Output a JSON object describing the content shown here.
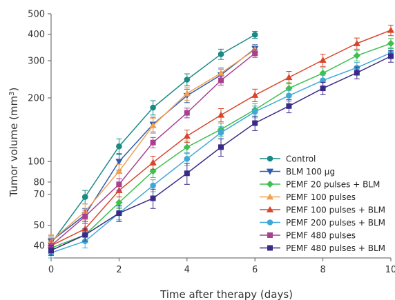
{
  "chart_data": {
    "type": "line",
    "xlabel": "Time after therapy (days)",
    "ylabel": "Tumor volume (mm3)",
    "ylabel_main": "Tumor volume (mm",
    "ylabel_sup": "3",
    "ylabel_end": ")",
    "xlim": [
      0,
      10
    ],
    "ylim": [
      35,
      500
    ],
    "yscale": "log",
    "xticks": [
      "0",
      "2",
      "4",
      "6",
      "8",
      "10"
    ],
    "xtick_values": [
      0,
      2,
      4,
      6,
      8,
      10
    ],
    "yticks": [
      "40",
      "50",
      "70",
      "80",
      "100",
      "200",
      "300",
      "400",
      "500"
    ],
    "ytick_values": [
      40,
      50,
      70,
      80,
      100,
      200,
      300,
      400,
      500
    ],
    "grid": false,
    "legend_position": "bottom-right",
    "series": [
      {
        "name": "Control",
        "color": "#1a8a84",
        "marker": "circle",
        "x": [
          0,
          1,
          2,
          3,
          4,
          5,
          6
        ],
        "y": [
          41,
          68,
          118,
          180,
          244,
          322,
          398
        ],
        "err": [
          2.5,
          5,
          10,
          14,
          16,
          18,
          15
        ]
      },
      {
        "name": "BLM 100 μg",
        "color": "#2e5bb0",
        "marker": "triangle-down",
        "x": [
          0,
          1,
          2,
          3,
          4,
          5,
          6
        ],
        "y": [
          42,
          56,
          100,
          150,
          205,
          257,
          342
        ],
        "err": [
          2.5,
          4,
          9,
          12,
          15,
          17,
          15
        ]
      },
      {
        "name": "PEMF 20 pulses + BLM",
        "color": "#3fbf4f",
        "marker": "diamond",
        "x": [
          0,
          1,
          2,
          3,
          4,
          5,
          6,
          7,
          8,
          9,
          10
        ],
        "y": [
          39,
          45,
          64,
          90,
          117,
          142,
          176,
          222,
          262,
          317,
          362
        ],
        "err": [
          2,
          3,
          4,
          6,
          8,
          10,
          12,
          14,
          16,
          18,
          20
        ]
      },
      {
        "name": "PEMF 100 pulses",
        "color": "#f0a050",
        "marker": "triangle-up",
        "x": [
          0,
          1,
          2,
          3,
          4,
          5,
          6
        ],
        "y": [
          42,
          58,
          90,
          148,
          210,
          262,
          338
        ],
        "err": [
          3,
          5,
          7,
          12,
          15,
          17,
          17
        ]
      },
      {
        "name": "PEMF 100 pulses + BLM",
        "color": "#d8452a",
        "marker": "triangle-up",
        "x": [
          0,
          1,
          2,
          3,
          4,
          5,
          6,
          7,
          8,
          9,
          10
        ],
        "y": [
          40,
          48,
          73,
          99,
          132,
          166,
          206,
          250,
          302,
          362,
          418
        ],
        "err": [
          2,
          3,
          5,
          7,
          9,
          12,
          14,
          17,
          20,
          22,
          24
        ]
      },
      {
        "name": "PEMF 200 pulses + BLM",
        "color": "#3fa8d8",
        "marker": "circle",
        "x": [
          0,
          1,
          2,
          3,
          4,
          5,
          6,
          7,
          8,
          9,
          10
        ],
        "y": [
          37,
          42,
          57,
          77,
          103,
          137,
          172,
          205,
          242,
          278,
          327
        ],
        "err": [
          2,
          3,
          4,
          5,
          7,
          9,
          11,
          12,
          14,
          16,
          18
        ]
      },
      {
        "name": "PEMF 480 pulses",
        "color": "#a84090",
        "marker": "square",
        "x": [
          0,
          1,
          2,
          3,
          4,
          5,
          6
        ],
        "y": [
          40,
          55,
          78,
          123,
          170,
          242,
          325
        ],
        "err": [
          3,
          4,
          5,
          7,
          9,
          12,
          14
        ]
      },
      {
        "name": "PEMF 480 pulses + BLM",
        "color": "#3a2a88",
        "marker": "square",
        "x": [
          0,
          1,
          2,
          3,
          4,
          5,
          6,
          7,
          8,
          9,
          10
        ],
        "y": [
          38,
          45,
          57,
          67,
          88,
          117,
          152,
          183,
          222,
          263,
          315
        ],
        "err": [
          2,
          3,
          5,
          7,
          10,
          11,
          12,
          13,
          15,
          17,
          20
        ]
      }
    ]
  }
}
